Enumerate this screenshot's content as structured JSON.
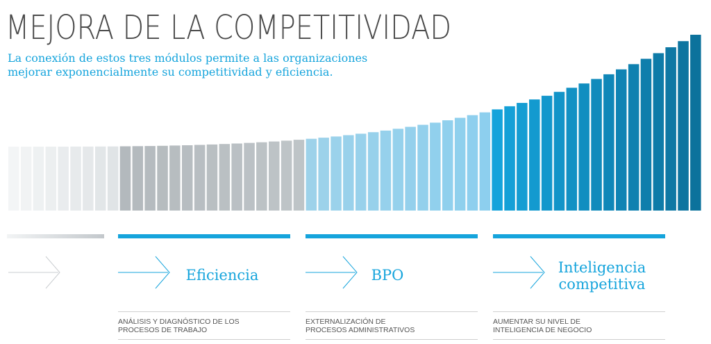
{
  "title": "MEJORA DE LA COMPETITIVIDAD",
  "subtitle_lines": [
    "La conexión de estos tres módulos permite a las organizaciones",
    "mejorar exponencialmente su competitividad y eficiencia."
  ],
  "colors": {
    "title": "#4a4a4a",
    "accent": "#15a4dc",
    "stage_start": "#e9ecee",
    "stage_efficiency": "#b6bcc0",
    "stage_bpo": "#90d0ec",
    "stage_intelligence": "#15a4dc",
    "stage_intelligence_end": "#0c6f99"
  },
  "modules": [
    {
      "id": "inicio",
      "heading_lines": [],
      "description_lines": []
    },
    {
      "id": "eficiencia",
      "heading_lines": [
        "Eficiencia"
      ],
      "description_lines": [
        "ANÁLISIS Y DIAGNÓSTICO DE LOS",
        "PROCESOS DE TRABAJO"
      ]
    },
    {
      "id": "bpo",
      "heading_lines": [
        "BPO"
      ],
      "description_lines": [
        "EXTERNALIZACIÓN DE",
        "PROCESOS ADMINISTRATIVOS"
      ]
    },
    {
      "id": "inteligencia",
      "heading_lines": [
        "Inteligencia",
        "competitiva"
      ],
      "description_lines": [
        "AUMENTAR SU NIVEL DE",
        "INTELIGENCIA DE NEGOCIO"
      ]
    }
  ]
}
